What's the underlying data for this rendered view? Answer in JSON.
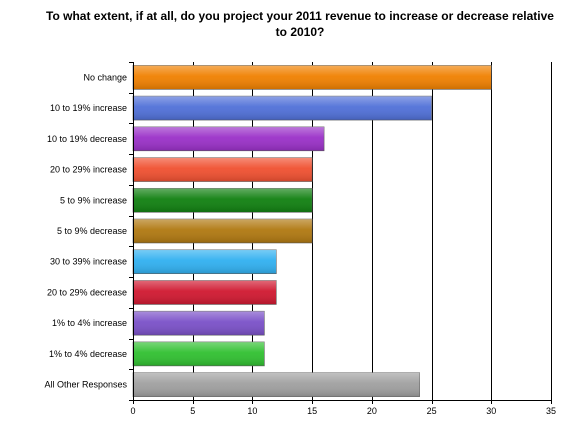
{
  "chart_data": {
    "type": "bar",
    "orientation": "horizontal",
    "title": "To what extent, if at all, do you project your 2011 revenue to increase or decrease relative\nto 2010?",
    "categories": [
      "No change",
      "10 to 19% increase",
      "10 to 19% decrease",
      "20 to 29% increase",
      "5 to 9% increase",
      "5 to 9% decrease",
      "30 to 39% increase",
      "20 to 29% decrease",
      "1% to 4% increase",
      "1% to 4% decrease",
      "All Other Responses"
    ],
    "values": [
      30,
      25,
      16,
      15,
      15,
      15,
      12,
      12,
      11,
      11,
      24
    ],
    "colors": [
      "#f08000",
      "#5070d8",
      "#9a30c8",
      "#f05030",
      "#108010",
      "#b07810",
      "#30b0f0",
      "#d01830",
      "#7a50c8",
      "#30c030",
      "#a0a0a0"
    ],
    "xlim": [
      0,
      35
    ],
    "xticks": [
      0,
      5,
      10,
      15,
      20,
      25,
      30,
      35
    ],
    "grid": true,
    "xlabel": "",
    "ylabel": ""
  }
}
